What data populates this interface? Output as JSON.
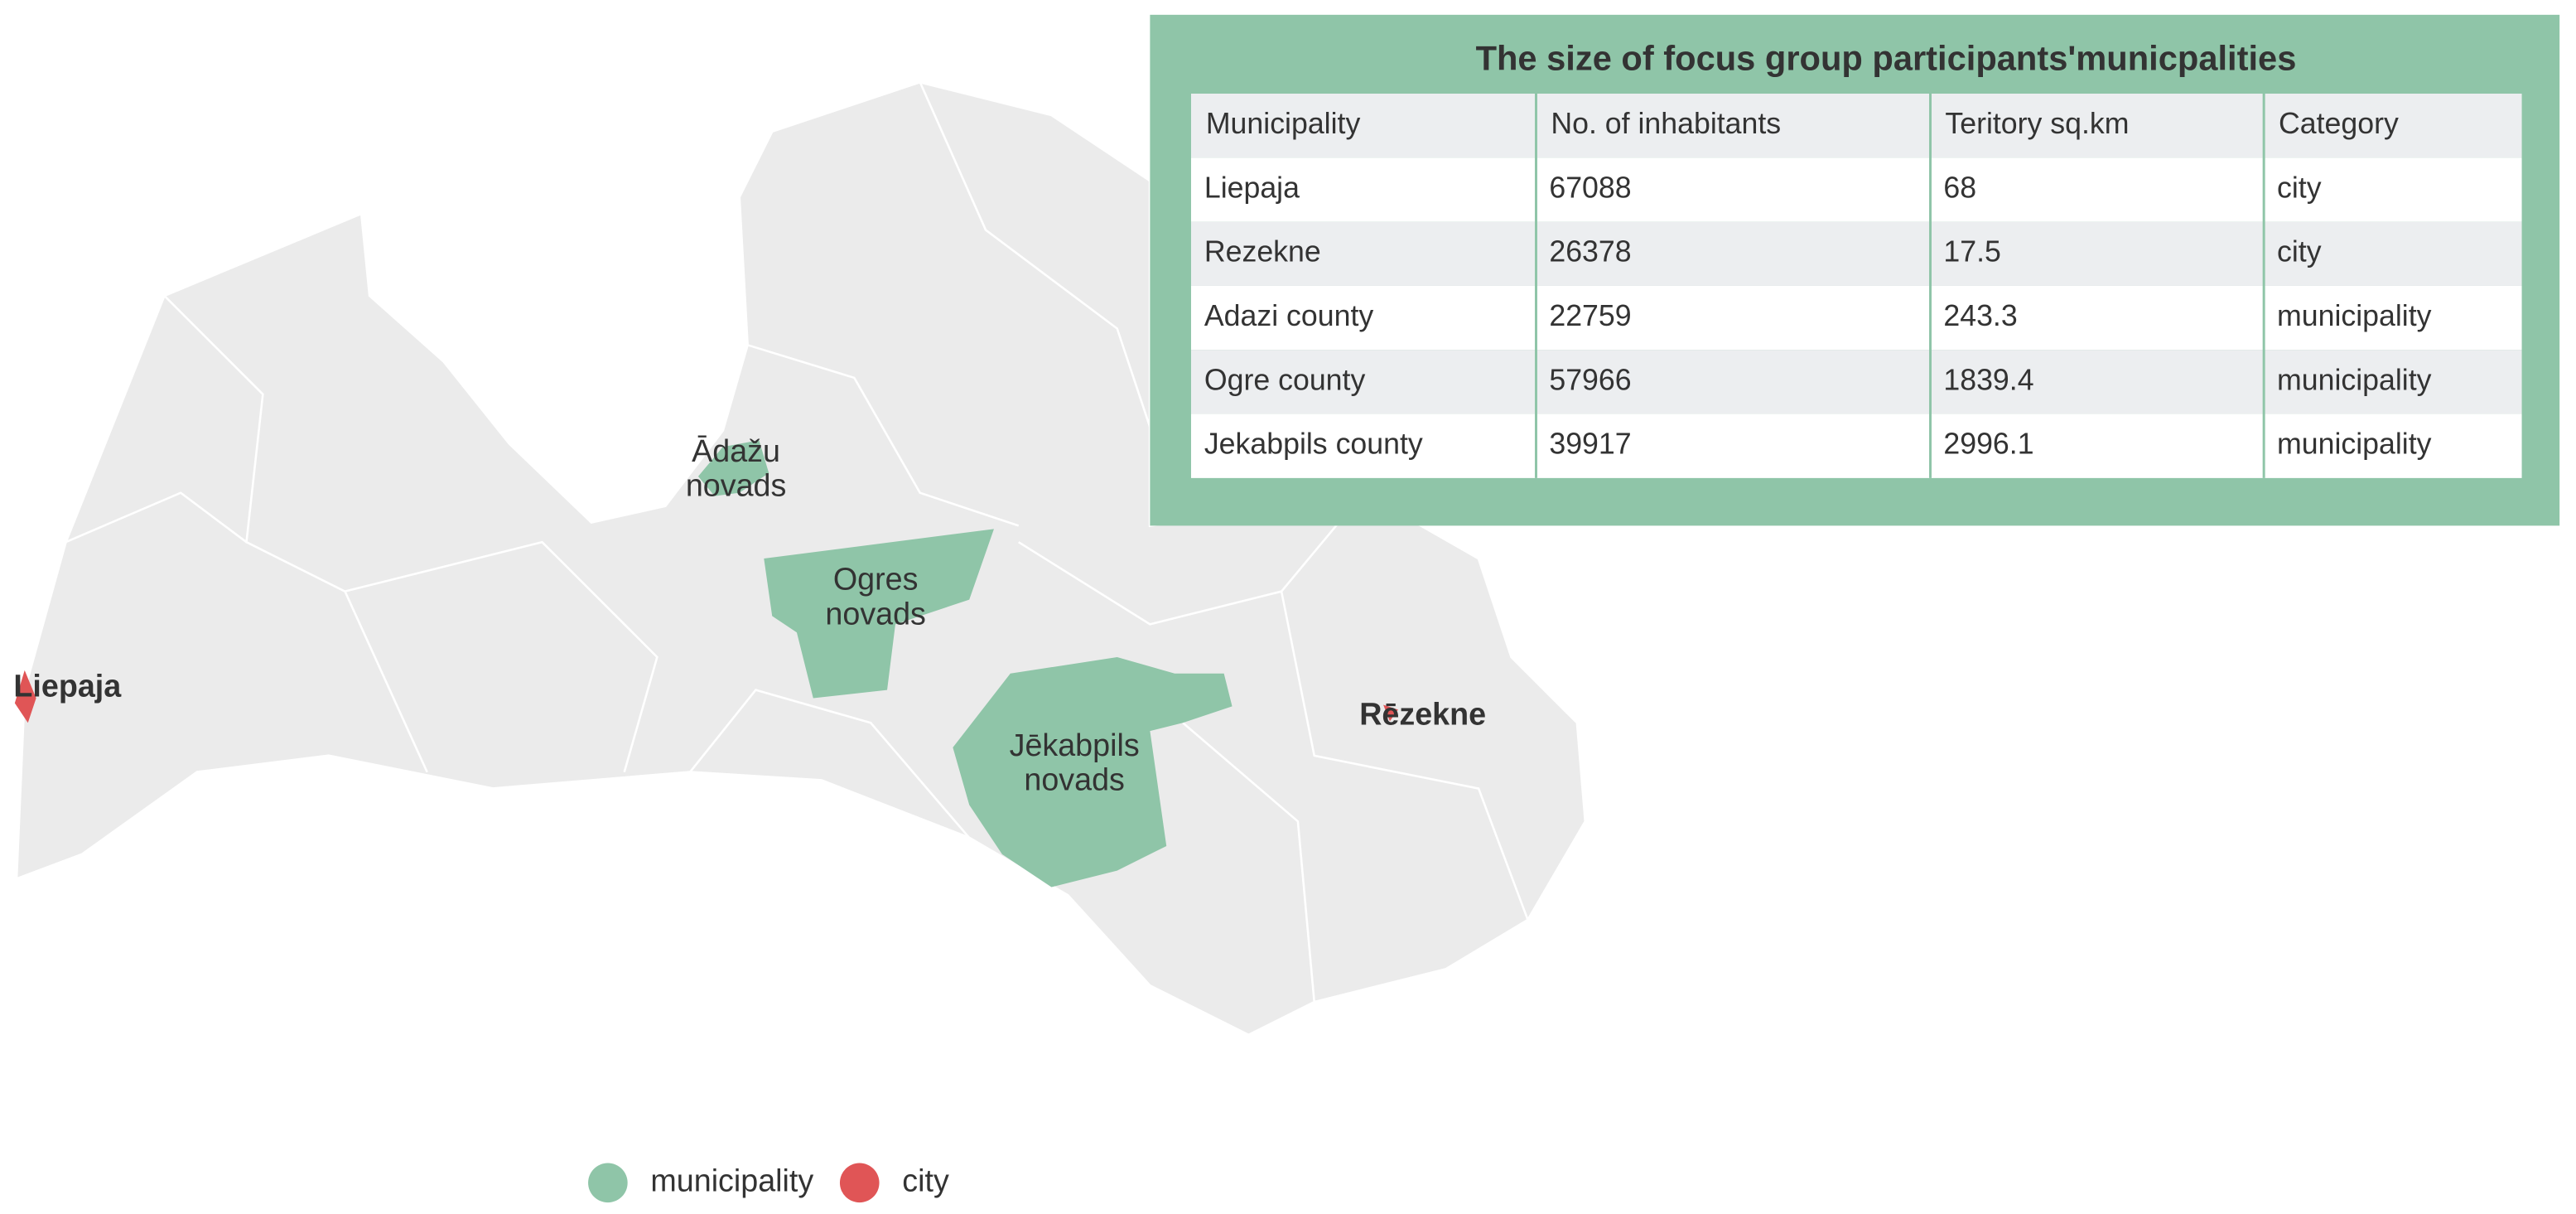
{
  "title": "The size of focus group participants'municpalities",
  "table": {
    "columns": [
      "Municipality",
      "No. of inhabitants",
      "Teritory sq.km",
      "Category"
    ],
    "rows": [
      [
        "Liepaja",
        67088,
        68,
        "city"
      ],
      [
        "Rezekne",
        26378,
        17.5,
        "city"
      ],
      [
        "Adazi county",
        22759,
        243.3,
        "municipality"
      ],
      [
        "Ogre county",
        57966,
        1839.4,
        "municipality"
      ],
      [
        "Jekabpils county",
        39917,
        2996.1,
        "municipality"
      ]
    ]
  },
  "map_labels": [
    {
      "lines": [
        "Ādažu",
        "novads"
      ]
    },
    {
      "lines": [
        "Ogres",
        "novads"
      ]
    },
    {
      "lines": [
        "Jēkabpils",
        "novads"
      ]
    },
    {
      "lines": [
        "Liepaja"
      ]
    },
    {
      "lines": [
        "Rēzekne"
      ]
    }
  ],
  "legend": [
    {
      "label": "municipality",
      "color": "#8fc5a8"
    },
    {
      "label": "city",
      "color": "#e05556"
    }
  ]
}
